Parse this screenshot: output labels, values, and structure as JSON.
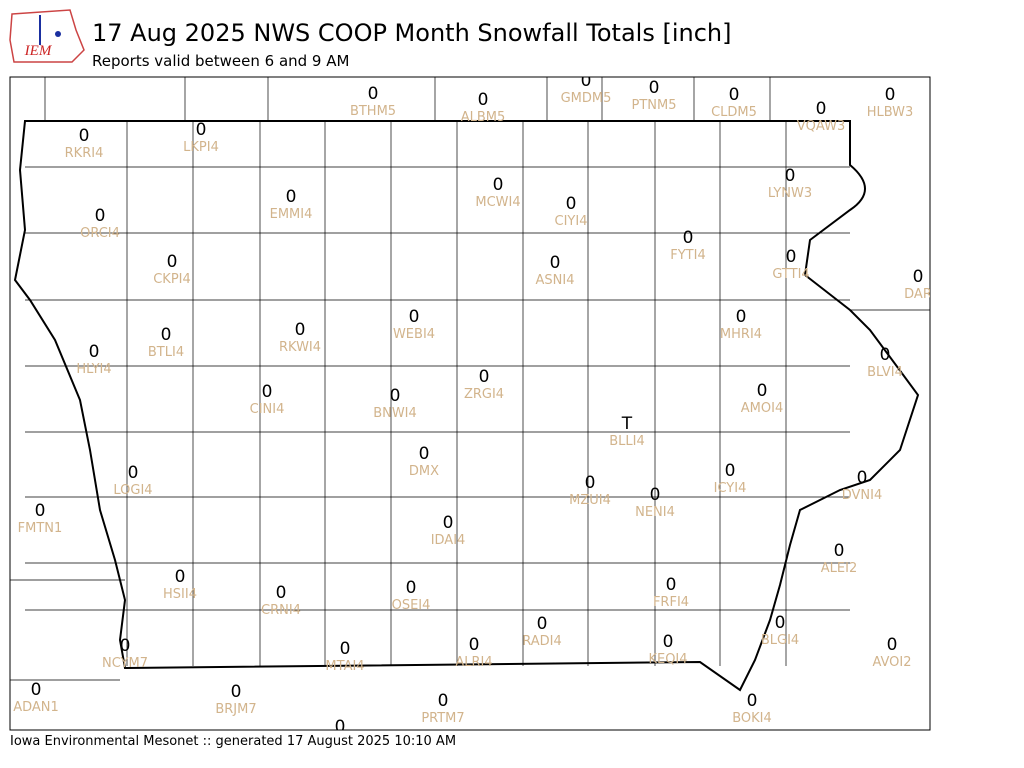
{
  "header": {
    "logo": "IEM",
    "title": "17 Aug 2025 NWS COOP Month Snowfall Totals [inch]",
    "subtitle": "Reports valid between 6 and 9 AM"
  },
  "map": {
    "stations": [
      {
        "value": 0,
        "id": "BTHM5"
      },
      {
        "value": 0,
        "id": "ALBM5"
      },
      {
        "value": 0,
        "id": "GMDM5"
      },
      {
        "value": 0,
        "id": "PTNM5"
      },
      {
        "value": 0,
        "id": "CLDM5"
      },
      {
        "value": 0,
        "id": "VQAW3"
      },
      {
        "value": 0,
        "id": "HLBW3"
      },
      {
        "value": 0,
        "id": "RKRI4"
      },
      {
        "value": 0,
        "id": "LKPI4"
      },
      {
        "value": 0,
        "id": "EMMI4"
      },
      {
        "value": 0,
        "id": "MCWI4"
      },
      {
        "value": 0,
        "id": "CIYI4"
      },
      {
        "value": 0,
        "id": "LYNW3"
      },
      {
        "value": 0,
        "id": "ORCI4"
      },
      {
        "value": 0,
        "id": "FYTI4"
      },
      {
        "value": 0,
        "id": "GTTI4"
      },
      {
        "value": 0,
        "id": "CKPI4"
      },
      {
        "value": 0,
        "id": "ASNI4"
      },
      {
        "value": 0,
        "id": "DAR"
      },
      {
        "value": 0,
        "id": "BTLI4"
      },
      {
        "value": 0,
        "id": "RKWI4"
      },
      {
        "value": 0,
        "id": "WEBI4"
      },
      {
        "value": 0,
        "id": "MHRI4"
      },
      {
        "value": 0,
        "id": "BLVI4"
      },
      {
        "value": 0,
        "id": "HLYI4"
      },
      {
        "value": 0,
        "id": "ZRGI4"
      },
      {
        "value": 0,
        "id": "CINI4"
      },
      {
        "value": 0,
        "id": "BNWI4"
      },
      {
        "value": 0,
        "id": "AMOI4"
      },
      {
        "value": "T",
        "id": "BLLI4"
      },
      {
        "value": 0,
        "id": "DMX"
      },
      {
        "value": 0,
        "id": "LOGI4"
      },
      {
        "value": 0,
        "id": "ICYI4"
      },
      {
        "value": 0,
        "id": "DVNI4"
      },
      {
        "value": 0,
        "id": "MZUI4"
      },
      {
        "value": 0,
        "id": "NENI4"
      },
      {
        "value": 0,
        "id": "FMTN1"
      },
      {
        "value": 0,
        "id": "IDAI4"
      },
      {
        "value": 0,
        "id": "ALEI2"
      },
      {
        "value": 0,
        "id": "HSII4"
      },
      {
        "value": 0,
        "id": "CRNI4"
      },
      {
        "value": 0,
        "id": "OSEI4"
      },
      {
        "value": 0,
        "id": "FRFI4"
      },
      {
        "value": 0,
        "id": "RADI4"
      },
      {
        "value": 0,
        "id": "BLGI4"
      },
      {
        "value": 0,
        "id": "NCYM7"
      },
      {
        "value": 0,
        "id": "ALRI4"
      },
      {
        "value": 0,
        "id": "KEQI4"
      },
      {
        "value": 0,
        "id": "AVOI2"
      },
      {
        "value": 0,
        "id": "MTAI4"
      },
      {
        "value": 0,
        "id": "ADAN1"
      },
      {
        "value": 0,
        "id": "BRJM7"
      },
      {
        "value": 0,
        "id": "PRTM7"
      },
      {
        "value": 0,
        "id": "BOKI4"
      },
      {
        "value": 0
      }
    ]
  },
  "footer": "Iowa Environmental Mesonet :: generated 17 August 2025 10:10 AM"
}
